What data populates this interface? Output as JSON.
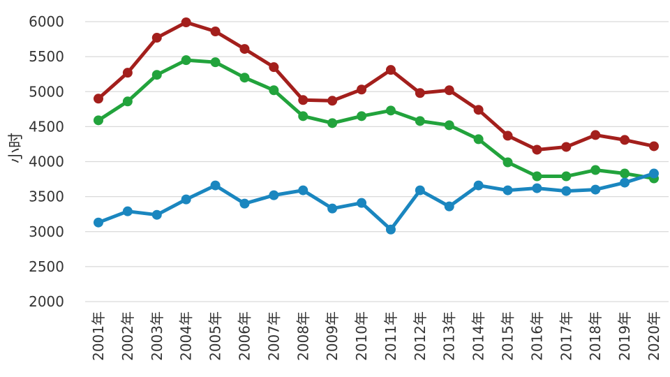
{
  "chart_data": {
    "type": "line",
    "title": "",
    "xlabel": "",
    "ylabel": "小时",
    "ylim": [
      2000,
      6000
    ],
    "yticks": [
      2000,
      2500,
      3000,
      3500,
      4000,
      4500,
      5000,
      5500,
      6000
    ],
    "grid": true,
    "categories": [
      "2001年",
      "2002年",
      "2003年",
      "2004年",
      "2005年",
      "2006年",
      "2007年",
      "2008年",
      "2009年",
      "2010年",
      "2011年",
      "2012年",
      "2013年",
      "2014年",
      "2015年",
      "2016年",
      "2017年",
      "2018年",
      "2019年",
      "2020年"
    ],
    "series": [
      {
        "name": "red-series",
        "color": "#a31f1c",
        "values": [
          4900,
          5270,
          5770,
          5990,
          5860,
          5610,
          5350,
          4880,
          4870,
          5030,
          5310,
          4980,
          5020,
          4740,
          4370,
          4170,
          4210,
          4380,
          4310,
          4220
        ]
      },
      {
        "name": "green-series",
        "color": "#22a33c",
        "values": [
          4590,
          4860,
          5240,
          5450,
          5420,
          5200,
          5020,
          4650,
          4550,
          4650,
          4730,
          4580,
          4520,
          4320,
          3990,
          3790,
          3790,
          3880,
          3830,
          3760
        ]
      },
      {
        "name": "blue-series",
        "color": "#1a86bf",
        "values": [
          3130,
          3290,
          3240,
          3460,
          3660,
          3400,
          3520,
          3590,
          3330,
          3410,
          3030,
          3590,
          3360,
          3660,
          3590,
          3620,
          3580,
          3600,
          3700,
          3830
        ]
      }
    ]
  }
}
